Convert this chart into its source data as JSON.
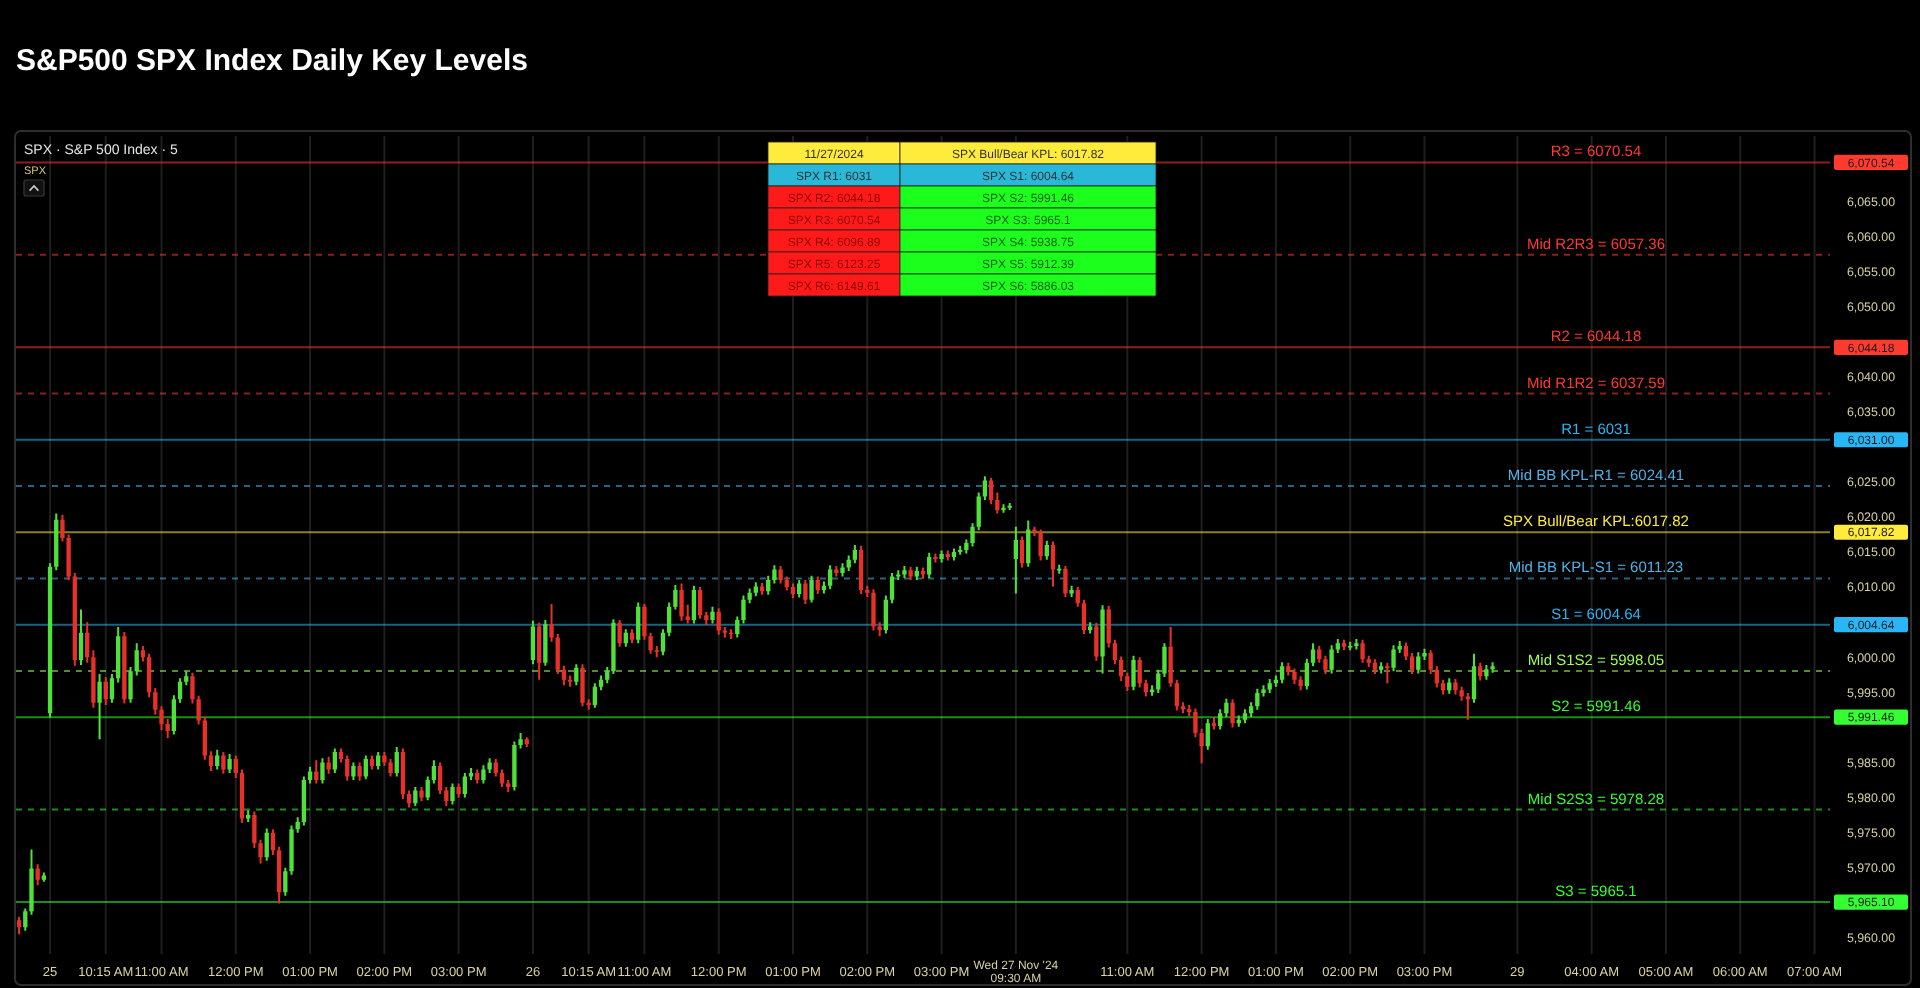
{
  "chart_data": {
    "type": "candlestick",
    "title": "S&P500 SPX Index Daily Key Levels",
    "subtitle": "SPX · S&P 500 Index · 5",
    "annotations": [
      "SPX",
      "11/27/2024",
      "SPX Bull/Bear KPL: 6017.82",
      "SPX R1: 6031",
      "SPX S1: 6004.64",
      "SPX R2: 6044.18",
      "SPX S2: 5991.46",
      "SPX R3: 6070.54",
      "SPX S3: 5965.1",
      "SPX R4: 6096.89",
      "SPX S4: 5938.75",
      "SPX R5: 6123.25",
      "SPX S5: 5912.39",
      "SPX R6: 6149.61",
      "SPX S6: 5886.03"
    ],
    "categories": [
      null,
      null,
      null,
      null,
      null,
      "25",
      null,
      null,
      null,
      null,
      null,
      null,
      null,
      null,
      "10:15 AM",
      null,
      null,
      null,
      null,
      null,
      null,
      null,
      null,
      "11:00 AM",
      null,
      null,
      null,
      null,
      null,
      null,
      null,
      null,
      null,
      null,
      null,
      "12:00 PM",
      null,
      null,
      null,
      null,
      null,
      null,
      null,
      null,
      null,
      null,
      null,
      "01:00 PM",
      null,
      null,
      null,
      null,
      null,
      null,
      null,
      null,
      null,
      null,
      null,
      "02:00 PM",
      null,
      null,
      null,
      null,
      null,
      null,
      null,
      null,
      null,
      null,
      null,
      "03:00 PM",
      null,
      null,
      null,
      null,
      null,
      null,
      null,
      null,
      null,
      null,
      null,
      "26",
      null,
      null,
      null,
      null,
      null,
      null,
      null,
      null,
      "10:15 AM",
      null,
      null,
      null,
      null,
      null,
      null,
      null,
      null,
      "11:00 AM",
      null,
      null,
      null,
      null,
      null,
      null,
      null,
      null,
      null,
      null,
      null,
      "12:00 PM",
      null,
      null,
      null,
      null,
      null,
      null,
      null,
      null,
      null,
      null,
      null,
      "01:00 PM",
      null,
      null,
      null,
      null,
      null,
      null,
      null,
      null,
      null,
      null,
      null,
      "02:00 PM",
      null,
      null,
      null,
      null,
      null,
      null,
      null,
      null,
      null,
      null,
      null,
      "03:00 PM",
      null,
      null,
      null,
      null,
      null,
      null,
      null,
      null,
      null,
      null,
      null,
      "Wed 27 Nov '24 09:30 AM",
      null,
      null,
      null,
      null,
      null,
      null,
      null,
      null,
      null,
      null,
      null,
      null,
      null,
      null,
      null,
      null,
      null,
      "11:00 AM",
      null,
      null,
      null,
      null,
      null,
      null,
      null,
      null,
      null,
      null,
      null,
      "12:00 PM",
      null,
      null,
      null,
      null,
      null,
      null,
      null,
      null,
      null,
      null,
      null,
      "01:00 PM",
      null,
      null,
      null,
      null,
      null,
      null,
      null,
      null,
      null,
      null,
      null,
      "02:00 PM",
      null,
      null,
      null,
      null,
      null,
      null,
      null,
      null,
      null,
      null,
      null,
      "03:00 PM",
      null,
      null,
      null,
      null,
      null,
      null,
      null,
      null,
      null,
      null,
      null,
      null,
      null,
      null,
      "29",
      null,
      null,
      null,
      null,
      null,
      null,
      null,
      null,
      null,
      null,
      null,
      "04:00 AM",
      null,
      null,
      null,
      null,
      null,
      null,
      null,
      null,
      null,
      null,
      null,
      "05:00 AM",
      null,
      null,
      null,
      null,
      null,
      null,
      null,
      null,
      null,
      null,
      null,
      "06:00 AM",
      null,
      null,
      null,
      null,
      null,
      null,
      null,
      null,
      null,
      null,
      null,
      "07:00 AM",
      null,
      null
    ],
    "ohlc": [
      [
        5962.5,
        5963,
        5960.5,
        5961.5
      ],
      [
        5961.5,
        5964.2,
        5961,
        5963.8
      ],
      [
        5963.8,
        5972.6,
        5963.3,
        5969.9
      ],
      [
        5969.9,
        5970.5,
        5967.5,
        5968.3
      ],
      [
        5968.3,
        5969.3,
        5968,
        5968.9
      ],
      [
        5992,
        6013.4,
        5991.4,
        6012.9
      ],
      [
        6012.9,
        6020.5,
        6012.4,
        6019.6
      ],
      [
        6019.6,
        6020.3,
        6016.5,
        6017
      ],
      [
        6017,
        6017.5,
        6011,
        6011.5
      ],
      [
        6011.5,
        6012,
        5998.8,
        5999.6
      ],
      [
        5999.6,
        6006.8,
        5998.9,
        6003.5
      ],
      [
        6003.5,
        6005,
        5999.2,
        6000
      ],
      [
        6000,
        6001,
        5992.8,
        5993.5
      ],
      [
        5993.5,
        5997.6,
        5988.3,
        5996.5
      ],
      [
        5996.5,
        5997.2,
        5993.2,
        5994
      ],
      [
        5994,
        5997.6,
        5993.5,
        5997
      ],
      [
        5997,
        6004.3,
        5996.4,
        6003
      ],
      [
        6003,
        6003.6,
        5993.4,
        5994
      ],
      [
        5994,
        5998.6,
        5993.5,
        5998
      ],
      [
        5998,
        6002,
        5997.4,
        6001
      ],
      [
        6001,
        6001.6,
        5999.4,
        6000
      ],
      [
        6000,
        6000.5,
        5994.3,
        5995
      ],
      [
        5995,
        5995.6,
        5991.8,
        5992.5
      ],
      [
        5992.5,
        5993,
        5989.6,
        5990.5
      ],
      [
        5990.5,
        5991.2,
        5988.5,
        5989.5
      ],
      [
        5989.5,
        5994.6,
        5989,
        5994
      ],
      [
        5994,
        5997,
        5993.5,
        5996.5
      ],
      [
        5996.5,
        5998,
        5996,
        5997.3
      ],
      [
        5997.3,
        5997.8,
        5993.4,
        5994
      ],
      [
        5994,
        5994.5,
        5990.4,
        5991
      ],
      [
        5991,
        5991.5,
        5985.4,
        5986
      ],
      [
        5986,
        5986.6,
        5983.8,
        5984.5
      ],
      [
        5984.5,
        5986.8,
        5984,
        5986
      ],
      [
        5986,
        5986.5,
        5983.4,
        5984
      ],
      [
        5984,
        5986.2,
        5983.5,
        5985.5
      ],
      [
        5985.5,
        5986,
        5982.8,
        5983.5
      ],
      [
        5983.5,
        5984,
        5976.4,
        5977
      ],
      [
        5977,
        5978.2,
        5976.5,
        5977.5
      ],
      [
        5977.5,
        5978,
        5972.8,
        5973.5
      ],
      [
        5973.5,
        5974,
        5970.6,
        5971.5
      ],
      [
        5971.5,
        5975.6,
        5971,
        5975
      ],
      [
        5975,
        5975.5,
        5971.8,
        5972.5
      ],
      [
        5972.5,
        5973,
        5964.9,
        5966.5
      ],
      [
        5966.5,
        5970,
        5966,
        5969.5
      ],
      [
        5969.5,
        5976,
        5969,
        5975.5
      ],
      [
        5975.5,
        5977.2,
        5975,
        5976.5
      ],
      [
        5976.5,
        5983,
        5976,
        5982.5
      ],
      [
        5982.5,
        5984.4,
        5982,
        5983.7
      ],
      [
        5983.7,
        5985.3,
        5982,
        5982.5
      ],
      [
        5982.5,
        5985.6,
        5982,
        5985
      ],
      [
        5985,
        5985.8,
        5983.4,
        5984
      ],
      [
        5984,
        5987,
        5983.5,
        5986.5
      ],
      [
        5986.5,
        5987,
        5985,
        5985.5
      ],
      [
        5985.5,
        5986,
        5982.4,
        5983
      ],
      [
        5983,
        5985,
        5982.5,
        5984.5
      ],
      [
        5984.5,
        5985,
        5982.4,
        5983
      ],
      [
        5983,
        5986,
        5982.6,
        5985.5
      ],
      [
        5985.5,
        5986,
        5984,
        5984.5
      ],
      [
        5984.5,
        5986.5,
        5984,
        5986
      ],
      [
        5986,
        5986.5,
        5984.5,
        5985
      ],
      [
        5985,
        5985.5,
        5983,
        5983.5
      ],
      [
        5983.5,
        5987.2,
        5983,
        5986.5
      ],
      [
        5986.5,
        5987,
        5979.8,
        5980.5
      ],
      [
        5980.5,
        5981,
        5978.6,
        5979.2
      ],
      [
        5979.2,
        5981.5,
        5978.8,
        5981
      ],
      [
        5981,
        5981.5,
        5979.5,
        5980
      ],
      [
        5980,
        5983,
        5979.6,
        5982.5
      ],
      [
        5982.5,
        5985.3,
        5982,
        5984.5
      ],
      [
        5984.5,
        5985,
        5980.5,
        5981
      ],
      [
        5981,
        5981.5,
        5978.8,
        5979.5
      ],
      [
        5979.5,
        5982,
        5979,
        5981.5
      ],
      [
        5981.5,
        5982,
        5980,
        5980.5
      ],
      [
        5980.5,
        5983.5,
        5980,
        5983
      ],
      [
        5983,
        5984.2,
        5982.5,
        5983.5
      ],
      [
        5983.5,
        5984,
        5982,
        5982.5
      ],
      [
        5982.5,
        5984.6,
        5982,
        5984
      ],
      [
        5984,
        5985.6,
        5983.5,
        5985
      ],
      [
        5985,
        5985.5,
        5983,
        5983.5
      ],
      [
        5983.5,
        5984,
        5981.5,
        5982
      ],
      [
        5982,
        5982.5,
        5980.8,
        5981.5
      ],
      [
        5981.5,
        5988,
        5981,
        5987.5
      ],
      [
        5987.5,
        5989.2,
        5987,
        5988.3
      ],
      [
        5988.3,
        5988.6,
        5987.2,
        5987.6
      ],
      [
        5999.6,
        6005.2,
        5999,
        6004.4
      ],
      [
        6004.4,
        6004.9,
        5996.8,
        5999.2
      ],
      [
        5999.2,
        6005.3,
        5998.8,
        6004.7
      ],
      [
        6004.7,
        6007.6,
        6002.2,
        6002.8
      ],
      [
        6002.8,
        6003.3,
        5997.6,
        5998.2
      ],
      [
        5998.2,
        5998.8,
        5996,
        5996.8
      ],
      [
        5996.8,
        5997.4,
        5995.8,
        5996.5
      ],
      [
        5996.5,
        5999,
        5996,
        5998.5
      ],
      [
        5998.5,
        5999,
        5993,
        5993.5
      ],
      [
        5993.5,
        5994,
        5992.5,
        5993.2
      ],
      [
        5993.2,
        5996.3,
        5992.8,
        5995.8
      ],
      [
        5995.8,
        5997.4,
        5995.3,
        5996.8
      ],
      [
        5996.8,
        5998.6,
        5996.3,
        5998
      ],
      [
        5998,
        6005.4,
        5997.6,
        6004.9
      ],
      [
        6004.9,
        6005.3,
        6001.5,
        6002
      ],
      [
        6002,
        6004,
        6001.5,
        6003.5
      ],
      [
        6003.5,
        6004,
        6002,
        6002.5
      ],
      [
        6002.5,
        6007.8,
        6002,
        6007.2
      ],
      [
        6007.2,
        6007.6,
        6002.5,
        6003
      ],
      [
        6003,
        6003.5,
        6000.5,
        6001
      ],
      [
        6001,
        6001.6,
        6000,
        6000.8
      ],
      [
        6000.8,
        6004,
        6000.3,
        6003.5
      ],
      [
        6003.5,
        6007.8,
        6003,
        6007.2
      ],
      [
        6007.2,
        6010.3,
        6006.8,
        6009.6
      ],
      [
        6009.6,
        6010.5,
        6005.2,
        6005.8
      ],
      [
        6005.8,
        6007.5,
        6004.8,
        6005.3
      ],
      [
        6005.3,
        6010.2,
        6004.8,
        6009.6
      ],
      [
        6009.6,
        6010,
        6005.5,
        6006
      ],
      [
        6006,
        6006.5,
        6004.6,
        6005.3
      ],
      [
        6005.3,
        6007.2,
        6004.8,
        6006.5
      ],
      [
        6006.5,
        6007,
        6003.2,
        6003.8
      ],
      [
        6003.8,
        6004.3,
        6002.8,
        6003.5
      ],
      [
        6003.5,
        6004,
        6002.6,
        6003.3
      ],
      [
        6003.3,
        6005.8,
        6002.8,
        6005.3
      ],
      [
        6005.3,
        6008.8,
        6004.8,
        6008.2
      ],
      [
        6008.2,
        6009.8,
        6007.7,
        6009.2
      ],
      [
        6009.2,
        6010.7,
        6008.7,
        6010.1
      ],
      [
        6010.1,
        6010.6,
        6008.9,
        6009.4
      ],
      [
        6009.4,
        6011.6,
        6008.9,
        6011
      ],
      [
        6011,
        6013.1,
        6010.5,
        6012.5
      ],
      [
        6012.5,
        6013,
        6010.5,
        6011
      ],
      [
        6011,
        6011.5,
        6009.5,
        6010
      ],
      [
        6010,
        6010.5,
        6008.4,
        6009
      ],
      [
        6009,
        6011,
        6008.5,
        6010.5
      ],
      [
        6010.5,
        6011,
        6007.6,
        6008.2
      ],
      [
        6008.2,
        6011.6,
        6007.8,
        6011
      ],
      [
        6011,
        6011.5,
        6009,
        6009.6
      ],
      [
        6009.6,
        6010.8,
        6009.1,
        6010.2
      ],
      [
        6010.2,
        6013.1,
        6009.7,
        6012.5
      ],
      [
        6012.5,
        6013,
        6011.5,
        6012
      ],
      [
        6012,
        6013.4,
        6011.5,
        6012.8
      ],
      [
        6012.8,
        6014.5,
        6012.3,
        6013.9
      ],
      [
        6013.9,
        6016,
        6013.4,
        6015.3
      ],
      [
        6015.3,
        6015.9,
        6009,
        6009.6
      ],
      [
        6009.6,
        6010.2,
        6008.6,
        6009.2
      ],
      [
        6009.2,
        6009.7,
        6003.8,
        6004.4
      ],
      [
        6004.4,
        6005,
        6003,
        6003.9
      ],
      [
        6003.9,
        6008.8,
        6003.4,
        6008.2
      ],
      [
        6008.2,
        6012,
        6007.7,
        6011.5
      ],
      [
        6011.5,
        6012.4,
        6011,
        6011.8
      ],
      [
        6011.8,
        6013,
        6011.3,
        6012.4
      ],
      [
        6012.4,
        6012.9,
        6011,
        6011.5
      ],
      [
        6011.5,
        6012.9,
        6011,
        6012.3
      ],
      [
        6012.3,
        6012.8,
        6011.2,
        6011.8
      ],
      [
        6011.8,
        6014.9,
        6011.3,
        6014.3
      ],
      [
        6014.3,
        6014.8,
        6013.5,
        6014
      ],
      [
        6014,
        6015.2,
        6013.5,
        6014.7
      ],
      [
        6014.7,
        6015.2,
        6013.8,
        6014.3
      ],
      [
        6014.3,
        6015.5,
        6013.8,
        6015
      ],
      [
        6015,
        6015.9,
        6014.6,
        6015.3
      ],
      [
        6015.3,
        6016.8,
        6014.8,
        6016.3
      ],
      [
        6016.3,
        6019.1,
        6015.8,
        6018.6
      ],
      [
        6018.6,
        6023.5,
        6018.1,
        6022.9
      ],
      [
        6022.9,
        6025.8,
        6022.4,
        6025.2
      ],
      [
        6025.2,
        6025.6,
        6021.8,
        6022.4
      ],
      [
        6022.4,
        6023.5,
        6020.5,
        6021
      ],
      [
        6021,
        6021.8,
        6020.6,
        6021.3
      ],
      [
        6021.3,
        6022,
        6021,
        6021.6
      ],
      [
        6014,
        6018.6,
        6009.1,
        6016.7
      ],
      [
        6016.7,
        6017.2,
        6012.8,
        6013.4
      ],
      [
        6013.4,
        6019.5,
        6012.9,
        6018.2
      ],
      [
        6018.2,
        6018.6,
        6017.3,
        6017.8
      ],
      [
        6017.8,
        6018.2,
        6013.8,
        6014.4
      ],
      [
        6014.4,
        6016.6,
        6013.9,
        6016
      ],
      [
        6016,
        6016.5,
        6010.1,
        6012.5
      ],
      [
        6012.5,
        6013.2,
        6011.9,
        6012.6
      ],
      [
        6012.6,
        6013,
        6008.6,
        6009.1
      ],
      [
        6009.1,
        6010.2,
        6008.6,
        6009.6
      ],
      [
        6009.6,
        6010,
        6007.2,
        6007.7
      ],
      [
        6007.7,
        6008.2,
        6003.3,
        6003.9
      ],
      [
        6003.9,
        6005,
        6003.4,
        6004.4
      ],
      [
        6004.4,
        6004.9,
        5999.5,
        6000.1
      ],
      [
        6000.1,
        6007.4,
        5997.7,
        6006.8
      ],
      [
        6006.8,
        6007.3,
        6001.4,
        6002
      ],
      [
        6002,
        6002.5,
        5999,
        5999.6
      ],
      [
        5999.6,
        6000.1,
        5996.6,
        5997.3
      ],
      [
        5997.3,
        5997.8,
        5995.2,
        5995.8
      ],
      [
        5995.8,
        6000.2,
        5995.3,
        5999.6
      ],
      [
        5999.6,
        6000,
        5995.7,
        5996.3
      ],
      [
        5996.3,
        5996.8,
        5994.4,
        5995
      ],
      [
        5995,
        5996,
        5994.5,
        5995.4
      ],
      [
        5995.4,
        5998.2,
        5994.9,
        5997.7
      ],
      [
        5997.7,
        6002,
        5997.2,
        6001.5
      ],
      [
        6001.5,
        6004.3,
        5995.8,
        5996.3
      ],
      [
        5996.3,
        5996.8,
        5992.4,
        5993
      ],
      [
        5993,
        5993.6,
        5992,
        5992.6
      ],
      [
        5992.6,
        5993.2,
        5991.6,
        5992.2
      ],
      [
        5992.2,
        5992.7,
        5988.6,
        5989.2
      ],
      [
        5989.2,
        5989.8,
        5984.9,
        5987.3
      ],
      [
        5987.3,
        5991.2,
        5986.8,
        5990.6
      ],
      [
        5990.6,
        5991.5,
        5989.7,
        5990.2
      ],
      [
        5990.2,
        5992.6,
        5989.7,
        5992
      ],
      [
        5992,
        5994.1,
        5991.5,
        5993.5
      ],
      [
        5993.5,
        5994,
        5990,
        5990.6
      ],
      [
        5990.6,
        5991.7,
        5990.1,
        5991.1
      ],
      [
        5991.1,
        5992.6,
        5990.6,
        5992
      ],
      [
        5992,
        5993.6,
        5991.5,
        5993
      ],
      [
        5993,
        5995.5,
        5992.5,
        5994.9
      ],
      [
        5994.9,
        5996,
        5994.4,
        5995.4
      ],
      [
        5995.4,
        5996.9,
        5994.9,
        5996.3
      ],
      [
        5996.3,
        5997.4,
        5995.8,
        5996.8
      ],
      [
        5996.8,
        5999.3,
        5996.3,
        5998.7
      ],
      [
        5998.7,
        5999.2,
        5997.4,
        5997.9
      ],
      [
        5997.9,
        5998.4,
        5996.2,
        5996.8
      ],
      [
        5996.8,
        5997.3,
        5995.3,
        5995.9
      ],
      [
        5995.9,
        5999.8,
        5995.4,
        5999.2
      ],
      [
        5999.2,
        6002,
        5998.7,
        6001.1
      ],
      [
        6001.1,
        6001.6,
        5999.2,
        5999.7
      ],
      [
        5999.7,
        6000.2,
        5997.6,
        5998.2
      ],
      [
        5998.2,
        6001.7,
        5997.7,
        6001.1
      ],
      [
        6001.1,
        6002.6,
        6000.6,
        6002
      ],
      [
        6002,
        6002.5,
        6001,
        6001.5
      ],
      [
        6001.5,
        6002.2,
        6001,
        6001.6
      ],
      [
        6001.6,
        6002.6,
        6001.1,
        6002
      ],
      [
        6002,
        6002.5,
        5999.2,
        5999.7
      ],
      [
        5999.7,
        6000.2,
        5998.6,
        5999.2
      ],
      [
        5999.2,
        5999.7,
        5997.6,
        5998.2
      ],
      [
        5998.2,
        5999.3,
        5997.7,
        5998.7
      ],
      [
        5998.7,
        5999.2,
        5996.3,
        5998.5
      ],
      [
        5998.5,
        6001.7,
        5998,
        6001.1
      ],
      [
        6001.1,
        6002.3,
        6000.6,
        6001.6
      ],
      [
        6001.6,
        6002.1,
        5999.6,
        6000.1
      ],
      [
        6000.1,
        6000.6,
        5997.6,
        5998.2
      ],
      [
        5998.2,
        6000.7,
        5997.7,
        6000.1
      ],
      [
        6000.1,
        6001.2,
        5999.6,
        6000.6
      ],
      [
        6000.6,
        6001,
        5997.6,
        5998.2
      ],
      [
        5998.2,
        5998.7,
        5995.7,
        5996.3
      ],
      [
        5996.3,
        5996.8,
        5994.7,
        5995.3
      ],
      [
        5995.3,
        5997,
        5994.8,
        5996.4
      ],
      [
        5996.4,
        5996.9,
        5994.7,
        5995.3
      ],
      [
        5995.3,
        5995.8,
        5993.8,
        5994.4
      ],
      [
        5994.4,
        5994.9,
        5991.1,
        5994
      ],
      [
        5994,
        6000.5,
        5993.5,
        5998.7
      ],
      [
        5998.7,
        5999.2,
        5996.7,
        5997.3
      ],
      [
        5997.3,
        5998.9,
        5996.8,
        5998.3
      ],
      [
        5998.3,
        5999.3,
        5997.8,
        5998.7
      ],
      null,
      null,
      null,
      null,
      null,
      null,
      null,
      null,
      null,
      null,
      null,
      null,
      null,
      null,
      null,
      null,
      null,
      null,
      null,
      null,
      null,
      null,
      null,
      null,
      null,
      null,
      null,
      null,
      null,
      null,
      null,
      null,
      null,
      null,
      null,
      null,
      null,
      null,
      null,
      null,
      null,
      null,
      null,
      null,
      null,
      null,
      null,
      null,
      null,
      null,
      null,
      null,
      null,
      null
    ],
    "ylim": [
      5957.7,
      6074.3
    ],
    "yticks": [
      {
        "value": 6070.54,
        "label": "6,070.54"
      },
      {
        "value": 6065,
        "label": "6,065.00"
      },
      {
        "value": 6060,
        "label": "6,060.00"
      },
      {
        "value": 6055,
        "label": "6,055.00"
      },
      {
        "value": 6050,
        "label": "6,050.00"
      },
      {
        "value": 6044.18,
        "label": "6,044.18"
      },
      {
        "value": 6040,
        "label": "6,040.00"
      },
      {
        "value": 6035,
        "label": "6,035.00"
      },
      {
        "value": 6031,
        "label": "6,031.00"
      },
      {
        "value": 6025,
        "label": "6,025.00"
      },
      {
        "value": 6020,
        "label": "6,020.00"
      },
      {
        "value": 6017.82,
        "label": "6,017.82"
      },
      {
        "value": 6015,
        "label": "6,015.00"
      },
      {
        "value": 6010,
        "label": "6,010.00"
      },
      {
        "value": 6004.64,
        "label": "6,004.64"
      },
      {
        "value": 6000,
        "label": "6,000.00"
      },
      {
        "value": 5995,
        "label": "5,995.00"
      },
      {
        "value": 5991.46,
        "label": "5,991.46"
      },
      {
        "value": 5985,
        "label": "5,985.00"
      },
      {
        "value": 5980,
        "label": "5,980.00"
      },
      {
        "value": 5975,
        "label": "5,975.00"
      },
      {
        "value": 5970,
        "label": "5,970.00"
      },
      {
        "value": 5965.1,
        "label": "5,965.10"
      },
      {
        "value": 5960,
        "label": "5,960.00"
      }
    ],
    "grid": "x",
    "ref_lines": [
      {
        "axis": "y",
        "value": 6070.54,
        "label": "R3 = 6070.54",
        "color": "#ff3b30",
        "line_style": "solid"
      },
      {
        "axis": "y",
        "value": 6057.36,
        "label": "Mid R2R3 = 6057.36",
        "color": "#ff3b30",
        "line_style": "dashed"
      },
      {
        "axis": "y",
        "value": 6044.18,
        "label": "R2 = 6044.18",
        "color": "#ff3b30",
        "line_style": "solid"
      },
      {
        "axis": "y",
        "value": 6037.59,
        "label": "Mid R1R2 = 6037.59",
        "color": "#ff3b30",
        "line_style": "dashed"
      },
      {
        "axis": "y",
        "value": 6031,
        "label": "R1 = 6031",
        "color": "#29b6f6",
        "line_style": "solid"
      },
      {
        "axis": "y",
        "value": 6024.41,
        "label": "Mid BB KPL-R1 = 6024.41",
        "color": "#4fb3e8",
        "line_style": "dashed"
      },
      {
        "axis": "y",
        "value": 6017.82,
        "label": "SPX Bull/Bear KPL:6017.82",
        "color": "#ffeb3b",
        "line_style": "solid"
      },
      {
        "axis": "y",
        "value": 6011.23,
        "label": "Mid BB KPL-S1 = 6011.23",
        "color": "#4fb3e8",
        "line_style": "dashed"
      },
      {
        "axis": "y",
        "value": 6004.64,
        "label": "S1 = 6004.64",
        "color": "#29b6f6",
        "line_style": "solid"
      },
      {
        "axis": "y",
        "value": 5998.05,
        "label": "Mid S1S2 = 5998.05",
        "color": "#9cff57",
        "line_style": "dashed"
      },
      {
        "axis": "y",
        "value": 5991.46,
        "label": "S2 = 5991.46",
        "color": "#33ff33",
        "line_style": "solid"
      },
      {
        "axis": "y",
        "value": 5978.28,
        "label": "Mid S2S3 = 5978.28",
        "color": "#33ff33",
        "line_style": "dashed"
      },
      {
        "axis": "y",
        "value": 5965.1,
        "label": "S3 = 5965.1",
        "color": "#33ff33",
        "line_style": "solid"
      }
    ]
  }
}
